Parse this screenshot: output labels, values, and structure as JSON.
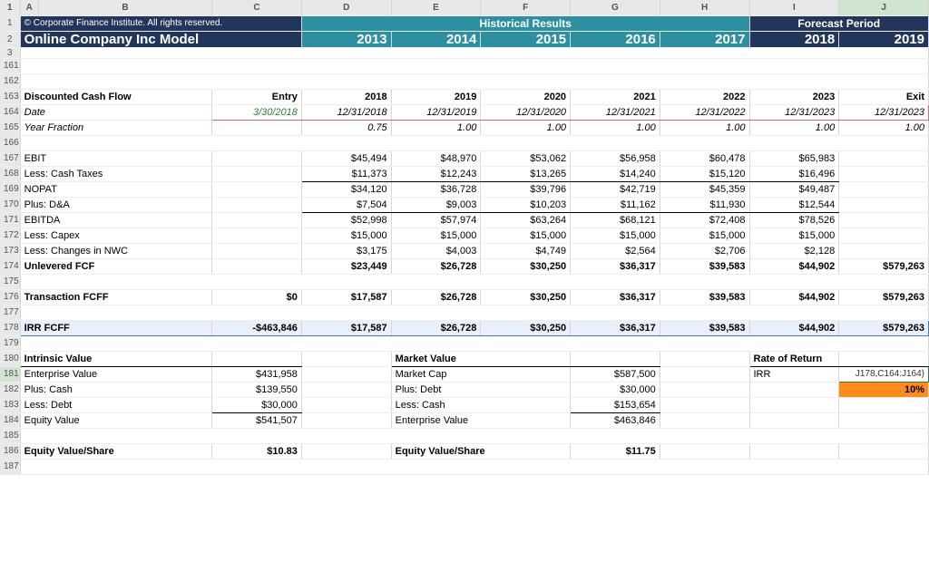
{
  "colHeaders": [
    "A",
    "B",
    "C",
    "D",
    "E",
    "F",
    "G",
    "H",
    "I",
    "J"
  ],
  "row1": {
    "copyright": "© Corporate Finance Institute. All rights reserved.",
    "hist": "Historical Results",
    "fc": "Forecast Period"
  },
  "row2": {
    "title": "Online Company Inc Model",
    "y13": "2013",
    "y14": "2014",
    "y15": "2015",
    "y16": "2016",
    "y17": "2017",
    "y18": "2018",
    "y19": "2019"
  },
  "r163": {
    "A": "Discounted Cash Flow",
    "C": "Entry",
    "D": "2018",
    "E": "2019",
    "F": "2020",
    "G": "2021",
    "H": "2022",
    "I": "2023",
    "J": "Exit"
  },
  "r164": {
    "A": "Date",
    "C": "3/30/2018",
    "D": "12/31/2018",
    "E": "12/31/2019",
    "F": "12/31/2020",
    "G": "12/31/2021",
    "H": "12/31/2022",
    "I": "12/31/2023",
    "J": "12/31/2023"
  },
  "r165": {
    "A": "Year Fraction",
    "D": "0.75",
    "E": "1.00",
    "F": "1.00",
    "G": "1.00",
    "H": "1.00",
    "I": "1.00",
    "J": "1.00"
  },
  "r167": {
    "A": "EBIT",
    "D": "$45,494",
    "E": "$48,970",
    "F": "$53,062",
    "G": "$56,958",
    "H": "$60,478",
    "I": "$65,983"
  },
  "r168": {
    "A": "Less: Cash Taxes",
    "D": "$11,373",
    "E": "$12,243",
    "F": "$13,265",
    "G": "$14,240",
    "H": "$15,120",
    "I": "$16,496"
  },
  "r169": {
    "A": "NOPAT",
    "D": "$34,120",
    "E": "$36,728",
    "F": "$39,796",
    "G": "$42,719",
    "H": "$45,359",
    "I": "$49,487"
  },
  "r170": {
    "A": "Plus: D&A",
    "D": "$7,504",
    "E": "$9,003",
    "F": "$10,203",
    "G": "$11,162",
    "H": "$11,930",
    "I": "$12,544"
  },
  "r171": {
    "A": "EBITDA",
    "D": "$52,998",
    "E": "$57,974",
    "F": "$63,264",
    "G": "$68,121",
    "H": "$72,408",
    "I": "$78,526"
  },
  "r172": {
    "A": "Less: Capex",
    "D": "$15,000",
    "E": "$15,000",
    "F": "$15,000",
    "G": "$15,000",
    "H": "$15,000",
    "I": "$15,000"
  },
  "r173": {
    "A": "Less: Changes in NWC",
    "D": "$3,175",
    "E": "$4,003",
    "F": "$4,749",
    "G": "$2,564",
    "H": "$2,706",
    "I": "$2,128"
  },
  "r174": {
    "A": "Unlevered FCF",
    "D": "$23,449",
    "E": "$26,728",
    "F": "$30,250",
    "G": "$36,317",
    "H": "$39,583",
    "I": "$44,902",
    "J": "$579,263"
  },
  "r176": {
    "A": "Transaction FCFF",
    "C": "$0",
    "D": "$17,587",
    "E": "$26,728",
    "F": "$30,250",
    "G": "$36,317",
    "H": "$39,583",
    "I": "$44,902",
    "J": "$579,263"
  },
  "r178": {
    "A": "IRR FCFF",
    "C": "-$463,846",
    "D": "$17,587",
    "E": "$26,728",
    "F": "$30,250",
    "G": "$36,317",
    "H": "$39,583",
    "I": "$44,902",
    "J": "$579,263"
  },
  "r180": {
    "A": "Intrinsic Value",
    "E": "Market Value",
    "I": "Rate of Return"
  },
  "r181": {
    "A": "Enterprise Value",
    "C": "$431,958",
    "E": "Market Cap",
    "G": "$587,500",
    "I": "IRR",
    "J": "J178,C164:J164)"
  },
  "r182": {
    "A": "Plus: Cash",
    "C": "$139,550",
    "E": "Plus: Debt",
    "G": "$30,000",
    "J": "10%"
  },
  "r183": {
    "A": "Less: Debt",
    "C": "$30,000",
    "E": "Less: Cash",
    "G": "$153,654"
  },
  "r184": {
    "A": "Equity Value",
    "C": "$541,507",
    "E": "Enterprise Value",
    "G": "$463,846"
  },
  "r186": {
    "A": "Equity Value/Share",
    "C": "$10.83",
    "E": "Equity Value/Share",
    "G": "$11.75"
  }
}
